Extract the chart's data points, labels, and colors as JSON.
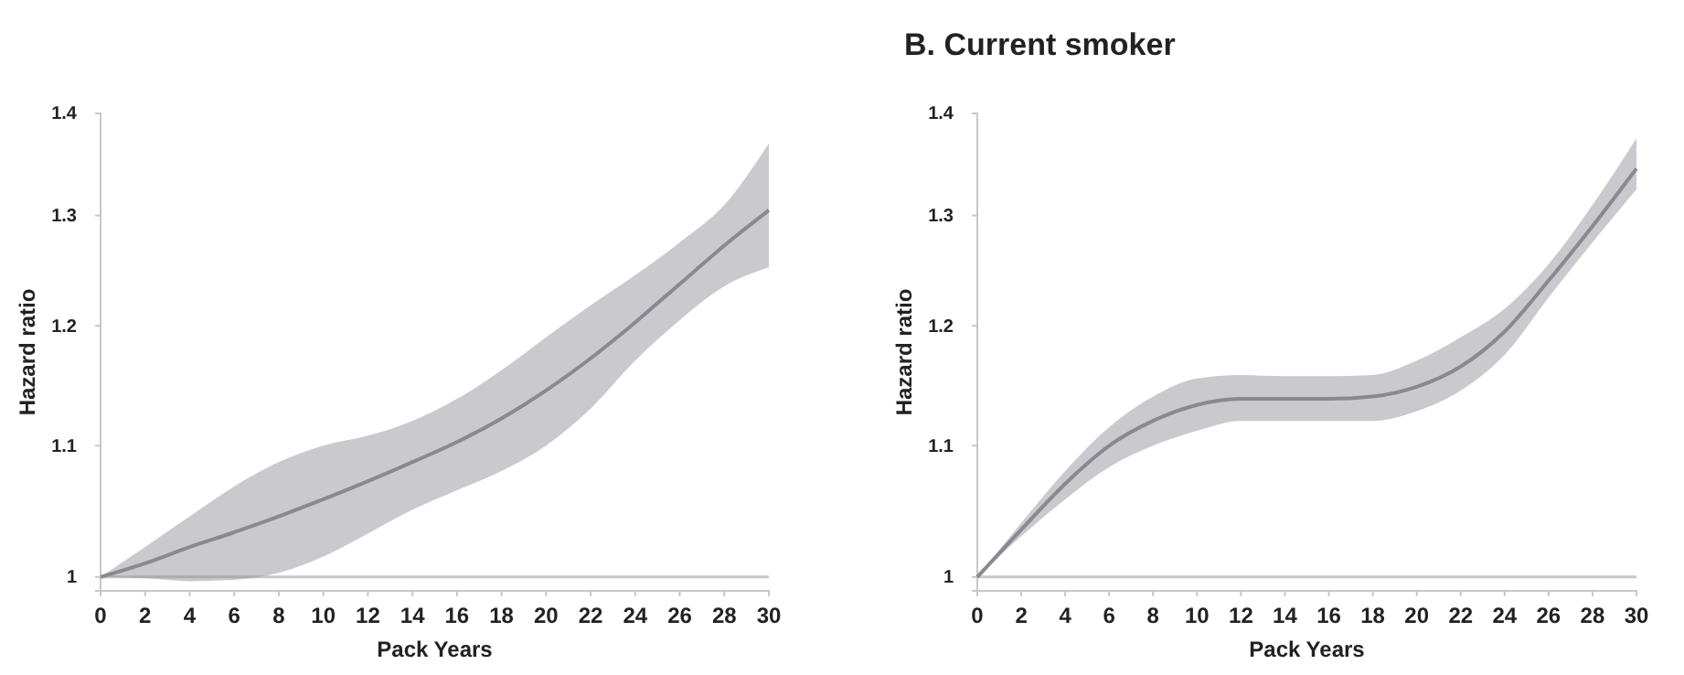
{
  "chart_data": [
    {
      "type": "line",
      "xlabel": "Pack Years",
      "ylabel": "Hazard ratio",
      "log": "y",
      "grid": false,
      "marker": "none",
      "line_style": "solid",
      "x": [
        0,
        2,
        4,
        6,
        8,
        10,
        12,
        14,
        16,
        18,
        20,
        22,
        24,
        26,
        28,
        30
      ],
      "xlim": [
        0,
        30
      ],
      "xticks": [
        0,
        2,
        4,
        6,
        8,
        10,
        12,
        14,
        16,
        18,
        20,
        22,
        24,
        26,
        28,
        30
      ],
      "ylim": [
        0.99,
        1.4
      ],
      "yticks": [
        1,
        1.1,
        1.2,
        1.3,
        1.4
      ],
      "ref_lines": [
        {
          "axis": "y",
          "value": 1,
          "color": "#c8c8c8"
        }
      ],
      "series": [
        {
          "color": "#8a8890",
          "values": [
            1.0,
            1.01,
            1.022,
            1.033,
            1.045,
            1.058,
            1.072,
            1.087,
            1.103,
            1.122,
            1.145,
            1.172,
            1.203,
            1.237,
            1.272,
            1.305
          ],
          "lower": [
            1.0,
            0.999,
            0.997,
            0.998,
            1.003,
            1.015,
            1.032,
            1.05,
            1.065,
            1.08,
            1.1,
            1.13,
            1.17,
            1.205,
            1.235,
            1.252
          ],
          "upper": [
            1.0,
            1.022,
            1.045,
            1.068,
            1.087,
            1.1,
            1.108,
            1.12,
            1.138,
            1.162,
            1.19,
            1.218,
            1.245,
            1.275,
            1.31,
            1.37
          ]
        }
      ]
    },
    {
      "type": "line",
      "title": "B. Current smoker",
      "xlabel": "Pack Years",
      "ylabel": "Hazard ratio",
      "log": "y",
      "grid": false,
      "marker": "none",
      "line_style": "solid",
      "x": [
        0,
        2,
        4,
        6,
        8,
        10,
        12,
        14,
        16,
        18,
        20,
        22,
        24,
        26,
        28,
        30
      ],
      "xlim": [
        0,
        30
      ],
      "xticks": [
        0,
        2,
        4,
        6,
        8,
        10,
        12,
        14,
        16,
        18,
        20,
        22,
        24,
        26,
        28,
        30
      ],
      "ylim": [
        0.99,
        1.4
      ],
      "yticks": [
        1,
        1.1,
        1.2,
        1.3,
        1.4
      ],
      "ref_lines": [
        {
          "axis": "y",
          "value": 1,
          "color": "#c8c8c8"
        }
      ],
      "series": [
        {
          "color": "#8a8890",
          "values": [
            1.0,
            1.035,
            1.07,
            1.1,
            1.12,
            1.133,
            1.138,
            1.138,
            1.138,
            1.14,
            1.148,
            1.165,
            1.195,
            1.24,
            1.29,
            1.345
          ],
          "lower": [
            1.0,
            1.03,
            1.058,
            1.083,
            1.1,
            1.112,
            1.12,
            1.12,
            1.12,
            1.12,
            1.128,
            1.145,
            1.175,
            1.225,
            1.275,
            1.325
          ],
          "upper": [
            1.0,
            1.04,
            1.08,
            1.115,
            1.14,
            1.155,
            1.158,
            1.157,
            1.157,
            1.158,
            1.17,
            1.19,
            1.215,
            1.255,
            1.31,
            1.375
          ]
        }
      ]
    }
  ]
}
